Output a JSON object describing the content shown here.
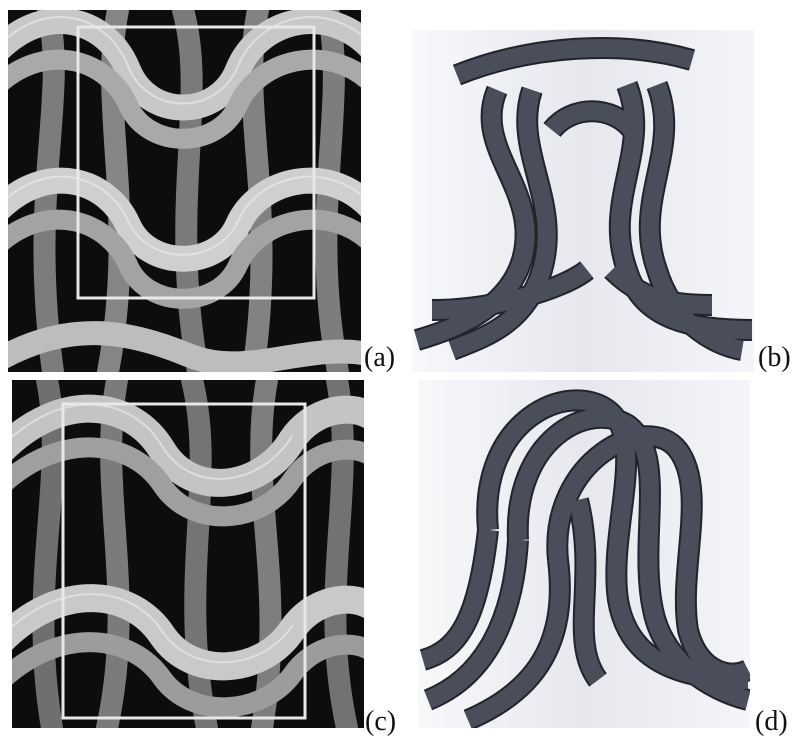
{
  "panels": [
    {
      "id": "a",
      "label": "(a)",
      "kind": "micro-ct-knit-image",
      "roi_box": true
    },
    {
      "id": "b",
      "label": "(b)",
      "kind": "cad-loop-model"
    },
    {
      "id": "c",
      "label": "(c)",
      "kind": "micro-ct-knit-image",
      "roi_box": true
    },
    {
      "id": "d",
      "label": "(d)",
      "kind": "cad-loop-model"
    }
  ],
  "colors": {
    "ct_background": "#0d0d0d",
    "yarn_light": "#d4d4d4",
    "yarn_mid": "#8e8e8e",
    "roi_box": "#e8e8e8",
    "cad_background": "#eceef2",
    "cad_yarn": "#4a4d5a",
    "cad_outline": "#22242c"
  }
}
